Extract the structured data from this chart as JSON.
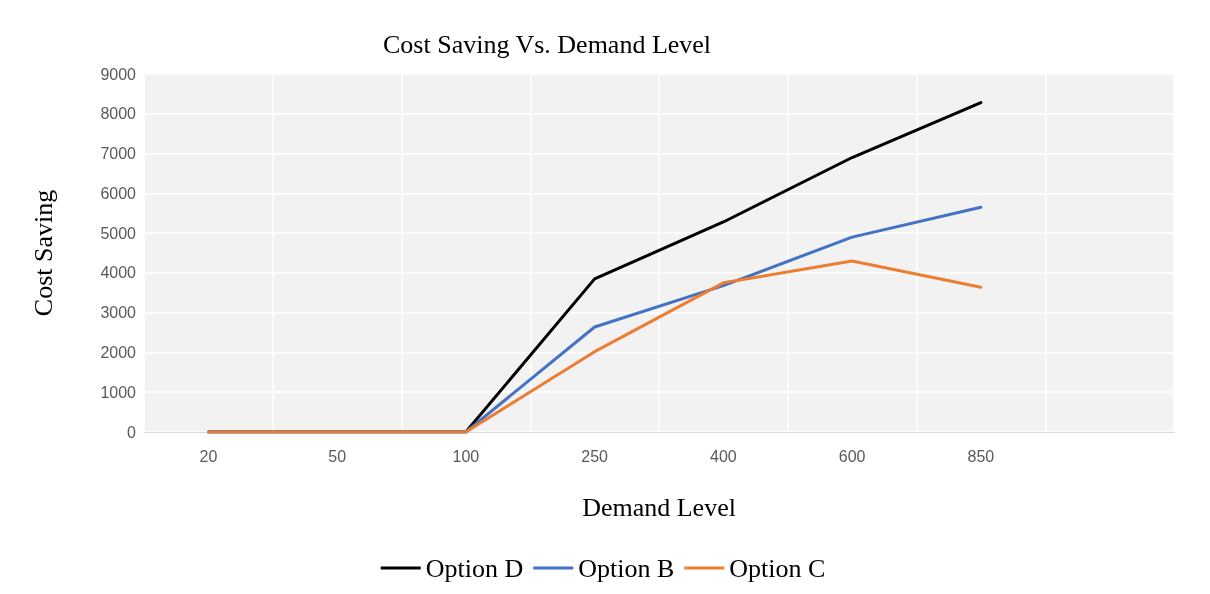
{
  "chart_data": {
    "type": "line",
    "title": "Cost Saving Vs. Demand Level",
    "xlabel": "Demand Level",
    "ylabel": "Cost Saving",
    "categories": [
      "20",
      "50",
      "100",
      "250",
      "400",
      "600",
      "850",
      null
    ],
    "series": [
      {
        "name": "Option D",
        "color": "#000000",
        "values": [
          0,
          0,
          0,
          3850,
          5280,
          6900,
          8280,
          null
        ]
      },
      {
        "name": "Option B",
        "color": "#4472c4",
        "values": [
          0,
          0,
          0,
          2640,
          3680,
          4900,
          5650,
          null
        ]
      },
      {
        "name": "Option C",
        "color": "#ed7d31",
        "values": [
          0,
          0,
          0,
          2020,
          3750,
          4300,
          3640,
          null
        ]
      }
    ],
    "ylim": [
      0,
      9000
    ],
    "yticks": [
      0,
      1000,
      2000,
      3000,
      4000,
      5000,
      6000,
      7000,
      8000,
      9000
    ],
    "grid": true,
    "legend": "bottom",
    "marker": "none",
    "line_style": "solid"
  }
}
